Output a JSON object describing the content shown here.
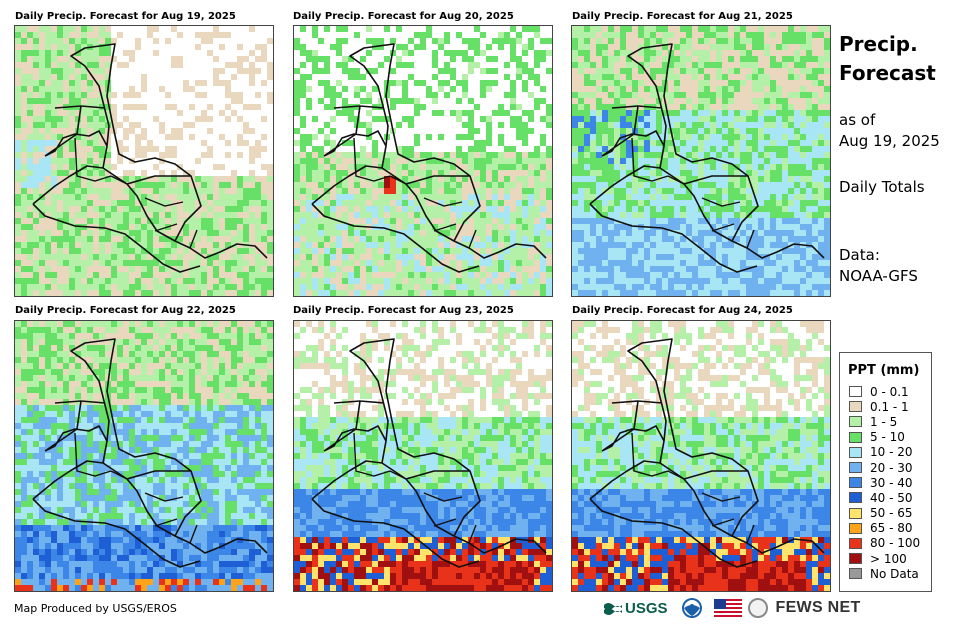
{
  "panels": [
    {
      "title": "Daily Precip. Forecast for Aug 19, 2025",
      "profile": "dry"
    },
    {
      "title": "Daily Precip. Forecast for Aug 20, 2025",
      "profile": "dry_spot"
    },
    {
      "title": "Daily Precip. Forecast for Aug 21, 2025",
      "profile": "moderate"
    },
    {
      "title": "Daily Precip. Forecast for Aug 22, 2025",
      "profile": "wet"
    },
    {
      "title": "Daily Precip. Forecast for Aug 23, 2025",
      "profile": "heavy"
    },
    {
      "title": "Daily Precip. Forecast for Aug 24, 2025",
      "profile": "heavy"
    }
  ],
  "sidebar": {
    "title_line1": "Precip.",
    "title_line2": "Forecast",
    "asof_line1": "as of",
    "asof_line2": "Aug 19, 2025",
    "totals": "Daily Totals",
    "source_label": "Data:",
    "source_value": "NOAA-GFS"
  },
  "legend": {
    "title": "PPT (mm)",
    "items": [
      {
        "label": "0 - 0.1",
        "color": "#ffffff"
      },
      {
        "label": "0.1 - 1",
        "color": "#e9d8bd"
      },
      {
        "label": "1 - 5",
        "color": "#b5f0a8"
      },
      {
        "label": "5 - 10",
        "color": "#66e066"
      },
      {
        "label": "10 - 20",
        "color": "#a8e6f5"
      },
      {
        "label": "20 - 30",
        "color": "#6fb2ef"
      },
      {
        "label": "30 - 40",
        "color": "#3b86e6"
      },
      {
        "label": "40 - 50",
        "color": "#1f5fd6"
      },
      {
        "label": "50 - 65",
        "color": "#ffe36a"
      },
      {
        "label": "65 - 80",
        "color": "#ffa41a"
      },
      {
        "label": "80 - 100",
        "color": "#e8321a"
      },
      {
        "label": "> 100",
        "color": "#a01010"
      },
      {
        "label": "No Data",
        "color": "#999999"
      }
    ]
  },
  "footer": {
    "credit": "Map Produced by USGS/EROS",
    "usgs": "USGS",
    "fews": "FEWS NET"
  }
}
